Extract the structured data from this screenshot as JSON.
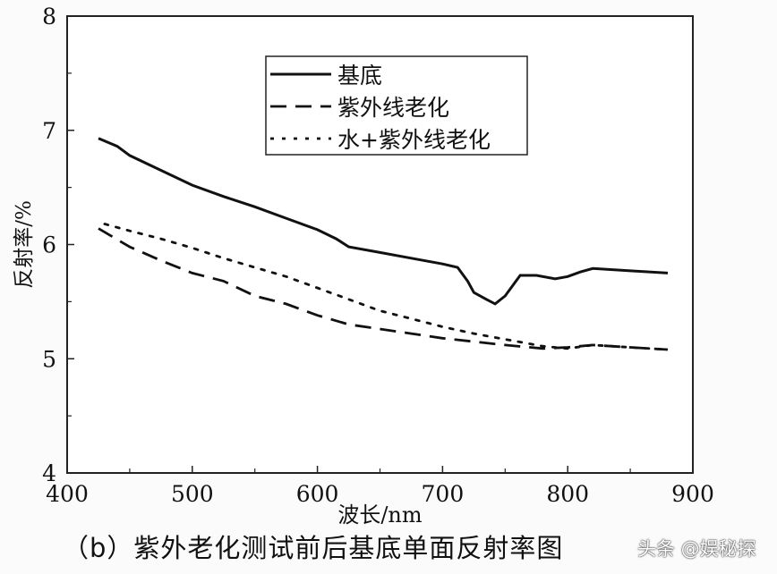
{
  "chart_data": {
    "type": "line",
    "title": "",
    "xlabel": "波长/nm",
    "ylabel": "反射率/%",
    "xlim": [
      400,
      900
    ],
    "ylim": [
      4,
      8
    ],
    "xticks": [
      400,
      500,
      600,
      700,
      800,
      900
    ],
    "yticks": [
      4,
      5,
      6,
      7,
      8
    ],
    "grid": false,
    "legend_position": "top-center",
    "series": [
      {
        "name": "基底",
        "style": "solid",
        "x": [
          425,
          440,
          450,
          475,
          500,
          525,
          550,
          575,
          600,
          615,
          625,
          650,
          675,
          700,
          712,
          720,
          725,
          735,
          742,
          750,
          762,
          775,
          790,
          800,
          810,
          820,
          850,
          880
        ],
        "y": [
          6.93,
          6.86,
          6.78,
          6.65,
          6.52,
          6.42,
          6.33,
          6.23,
          6.13,
          6.05,
          5.98,
          5.93,
          5.88,
          5.83,
          5.8,
          5.68,
          5.58,
          5.52,
          5.48,
          5.55,
          5.73,
          5.73,
          5.7,
          5.72,
          5.76,
          5.79,
          5.77,
          5.75
        ]
      },
      {
        "name": "紫外线老化",
        "style": "dashed",
        "x": [
          425,
          450,
          475,
          500,
          525,
          550,
          575,
          600,
          625,
          650,
          675,
          700,
          725,
          750,
          780,
          800,
          820,
          850,
          880
        ],
        "y": [
          6.14,
          5.98,
          5.86,
          5.75,
          5.68,
          5.55,
          5.48,
          5.38,
          5.3,
          5.26,
          5.22,
          5.18,
          5.15,
          5.12,
          5.09,
          5.1,
          5.12,
          5.1,
          5.08
        ]
      },
      {
        "name": "水+紫外线老化",
        "style": "dotted",
        "x": [
          430,
          450,
          475,
          500,
          525,
          550,
          575,
          600,
          625,
          650,
          675,
          700,
          725,
          750,
          780,
          800,
          820,
          850,
          880
        ],
        "y": [
          6.18,
          6.12,
          6.05,
          5.97,
          5.88,
          5.8,
          5.72,
          5.62,
          5.52,
          5.42,
          5.35,
          5.28,
          5.22,
          5.17,
          5.11,
          5.09,
          5.12,
          5.1,
          5.08
        ]
      }
    ]
  },
  "caption": "（b）紫外老化测试前后基底单面反射率图",
  "watermark": "头条 @娱秘探"
}
